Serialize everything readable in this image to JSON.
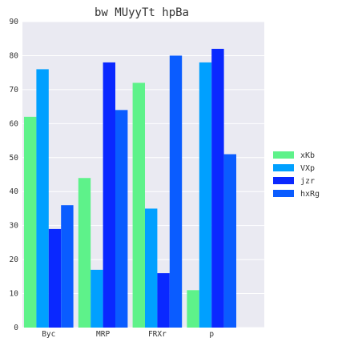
{
  "chart_data": {
    "type": "bar",
    "title": "bw MUyyTt hpBa",
    "xlabel": "",
    "ylabel": "",
    "categories": [
      "Byc",
      "MRP",
      "FRXr",
      "p"
    ],
    "series": [
      {
        "name": "xKb",
        "color": "#5ef28a",
        "values": [
          62,
          44,
          72,
          11
        ]
      },
      {
        "name": "VXp",
        "color": "#00a0ff",
        "values": [
          76,
          17,
          35,
          78
        ]
      },
      {
        "name": "jzr",
        "color": "#0a28ff",
        "values": [
          29,
          78,
          16,
          82
        ]
      },
      {
        "name": "hxRg",
        "color": "#0a5cff",
        "values": [
          36,
          64,
          80,
          51
        ]
      }
    ],
    "ylim": [
      0,
      90
    ],
    "yticks": [
      0,
      10,
      20,
      30,
      40,
      50,
      60,
      70,
      80,
      90
    ],
    "grid": true,
    "legend_position": "right",
    "background_color": "#eaeaf2",
    "grid_color": "#ffffff"
  }
}
